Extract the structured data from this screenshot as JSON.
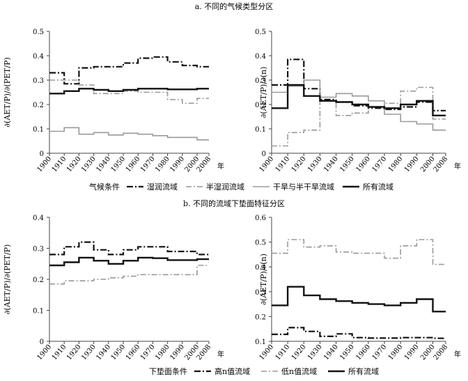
{
  "figure": {
    "title_a": "a. 不同的气候类型分区",
    "title_b": "b. 不同的流域下垫面特征分区",
    "x_unit": "年",
    "legend_a": {
      "label": "气候条件",
      "items": [
        "湿润流域",
        "半湿润流域",
        "干旱与半干旱流域",
        "所有流域"
      ]
    },
    "legend_b": {
      "label": "下垫面条件",
      "items": [
        "高n值流域",
        "低n值流域",
        "所有流域"
      ]
    },
    "styles": {
      "湿润流域": {
        "color": "#111111",
        "dash": "9,3,2,3",
        "width": 2.2
      },
      "半湿润流域": {
        "color": "#999999",
        "dash": "8,3,2,3",
        "width": 1.6
      },
      "干旱与半干旱流域": {
        "color": "#9a9a9a",
        "dash": "",
        "width": 1.6
      },
      "所有流域": {
        "color": "#111111",
        "dash": "",
        "width": 2.4
      },
      "高n值流域": {
        "color": "#111111",
        "dash": "9,3,2,3",
        "width": 2.2
      },
      "低n值流域": {
        "color": "#999999",
        "dash": "8,3,2,3",
        "width": 1.6
      }
    }
  },
  "chart_data": [
    {
      "type": "line",
      "panel": "a-left",
      "ylabel": "∂(AET/P)/∂(PET/P)",
      "ylim": [
        0,
        0.5
      ],
      "yticks": [
        "0",
        "0.1",
        "0.2",
        "0.3",
        "0.4",
        "0.5"
      ],
      "xlim": [
        1900,
        2008
      ],
      "xticks": [
        "1900",
        "1910",
        "1920",
        "1930",
        "1940",
        "1950",
        "1960",
        "1970",
        "1980",
        "1990",
        "2000",
        "2008"
      ],
      "x": [
        1900,
        1910,
        1920,
        1930,
        1940,
        1950,
        1960,
        1970,
        1980,
        1990,
        2000,
        2008
      ],
      "series": [
        {
          "name": "湿润流域",
          "values": [
            0.33,
            0.285,
            0.35,
            0.355,
            0.355,
            0.37,
            0.39,
            0.395,
            0.375,
            0.36,
            0.355,
            0.35
          ]
        },
        {
          "name": "半湿润流域",
          "values": [
            0.3,
            0.3,
            0.28,
            0.245,
            0.245,
            0.255,
            0.25,
            0.25,
            0.22,
            0.205,
            0.225,
            0.225
          ]
        },
        {
          "name": "干旱与半干旱流域",
          "values": [
            0.09,
            0.105,
            0.078,
            0.085,
            0.075,
            0.082,
            0.078,
            0.072,
            0.065,
            0.065,
            0.055,
            0.055
          ]
        },
        {
          "name": "所有流域",
          "values": [
            0.245,
            0.255,
            0.265,
            0.26,
            0.255,
            0.26,
            0.265,
            0.265,
            0.262,
            0.262,
            0.265,
            0.265
          ]
        }
      ]
    },
    {
      "type": "line",
      "panel": "a-right",
      "ylabel": "∂(AET/P)/∂(n)",
      "ylim": [
        0,
        0.5
      ],
      "yticks": [
        "0",
        "0.1",
        "0.2",
        "0.3",
        "0.4",
        "0.5"
      ],
      "xlim": [
        1900,
        2008
      ],
      "xticks": [
        "1900",
        "1910",
        "1920",
        "1930",
        "1940",
        "1950",
        "1960",
        "1970",
        "1980",
        "1990",
        "2000",
        "2008"
      ],
      "x": [
        1900,
        1910,
        1920,
        1930,
        1940,
        1950,
        1960,
        1970,
        1980,
        1990,
        2000,
        2008
      ],
      "series": [
        {
          "name": "湿润流域",
          "values": [
            0.28,
            0.385,
            0.265,
            0.22,
            0.21,
            0.195,
            0.185,
            0.18,
            0.19,
            0.21,
            0.175,
            0.175
          ]
        },
        {
          "name": "半湿润流域",
          "values": [
            0.03,
            0.085,
            0.095,
            0.215,
            0.155,
            0.165,
            0.19,
            0.205,
            0.255,
            0.27,
            0.14,
            0.14
          ]
        },
        {
          "name": "干旱与半干旱流域",
          "values": [
            0.25,
            0.275,
            0.3,
            0.23,
            0.245,
            0.235,
            0.215,
            0.16,
            0.13,
            0.12,
            0.095,
            0.095
          ]
        },
        {
          "name": "所有流域",
          "values": [
            0.185,
            0.28,
            0.235,
            0.215,
            0.21,
            0.2,
            0.19,
            0.185,
            0.2,
            0.215,
            0.155,
            0.155
          ]
        }
      ]
    },
    {
      "type": "line",
      "panel": "b-left",
      "ylabel": "∂(AET/P)/∂(PET/P)",
      "ylim": [
        0,
        0.4
      ],
      "yticks": [
        "0",
        "0.1",
        "0.2",
        "0.3",
        "0.4"
      ],
      "xlim": [
        1900,
        2008
      ],
      "xticks": [
        "1900",
        "1910",
        "1920",
        "1930",
        "1940",
        "1950",
        "1960",
        "1970",
        "1980",
        "1990",
        "2000",
        "2008"
      ],
      "x": [
        1900,
        1910,
        1920,
        1930,
        1940,
        1950,
        1960,
        1970,
        1980,
        1990,
        2000,
        2008
      ],
      "series": [
        {
          "name": "高n值流域",
          "values": [
            0.28,
            0.305,
            0.32,
            0.295,
            0.28,
            0.295,
            0.305,
            0.305,
            0.29,
            0.29,
            0.28,
            0.28
          ]
        },
        {
          "name": "低n值流域",
          "values": [
            0.185,
            0.195,
            0.195,
            0.2,
            0.205,
            0.21,
            0.215,
            0.215,
            0.215,
            0.215,
            0.245,
            0.245
          ]
        },
        {
          "name": "所有流域",
          "values": [
            0.245,
            0.255,
            0.27,
            0.26,
            0.25,
            0.26,
            0.27,
            0.268,
            0.262,
            0.262,
            0.265,
            0.265
          ]
        }
      ]
    },
    {
      "type": "line",
      "panel": "b-right",
      "ylabel": "∂(AET/P)/∂(n)",
      "ylim": [
        0.1,
        0.6
      ],
      "yticks": [
        "0.1",
        "0.2",
        "0.3",
        "0.4",
        "0.5",
        "0.6"
      ],
      "xlim": [
        1900,
        2008
      ],
      "xticks": [
        "1900",
        "1910",
        "1920",
        "1930",
        "1940",
        "1950",
        "1960",
        "1970",
        "1980",
        "1990",
        "2000",
        "2008"
      ],
      "x": [
        1900,
        1910,
        1920,
        1930,
        1940,
        1950,
        1960,
        1970,
        1980,
        1990,
        2000,
        2008
      ],
      "series": [
        {
          "name": "高n值流域",
          "values": [
            0.128,
            0.155,
            0.14,
            0.12,
            0.13,
            0.115,
            0.113,
            0.113,
            0.115,
            0.115,
            0.112,
            0.112
          ]
        },
        {
          "name": "低n值流域",
          "values": [
            0.455,
            0.51,
            0.48,
            0.485,
            0.46,
            0.455,
            0.455,
            0.435,
            0.485,
            0.51,
            0.41,
            0.41
          ]
        },
        {
          "name": "所有流域",
          "values": [
            0.245,
            0.32,
            0.285,
            0.27,
            0.262,
            0.255,
            0.25,
            0.245,
            0.255,
            0.27,
            0.22,
            0.22
          ]
        }
      ]
    }
  ]
}
